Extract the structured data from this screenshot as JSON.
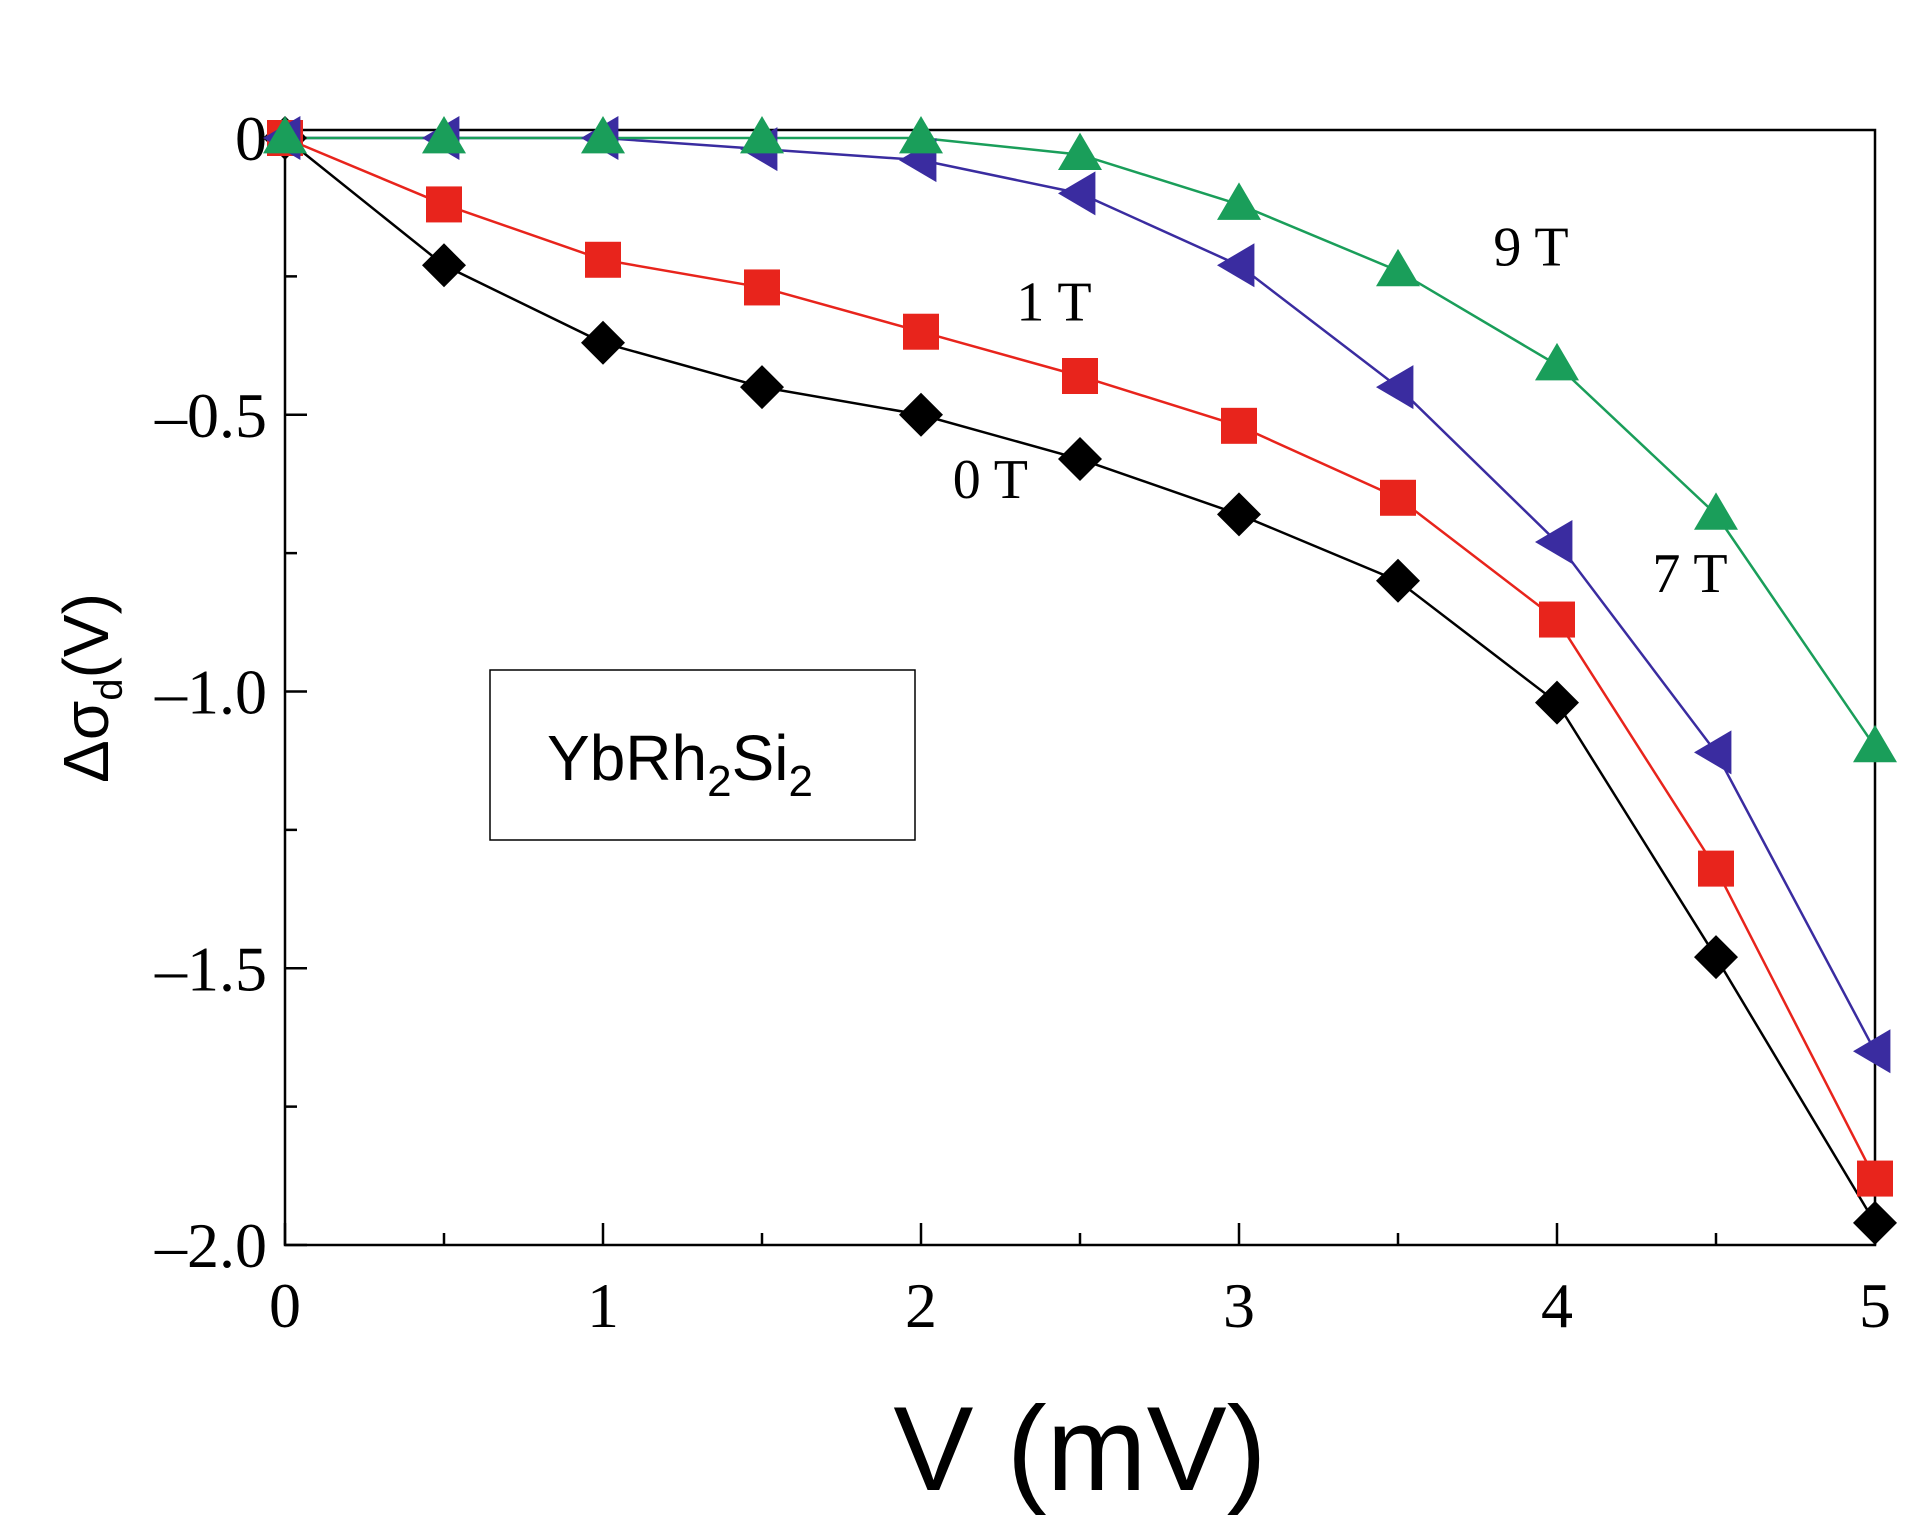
{
  "chart_data": {
    "type": "line",
    "title": "",
    "xlabel": "V (mV)",
    "ylabel": {
      "main": "Δσ",
      "subscript": "d",
      "suffix": "(V)"
    },
    "xlim": [
      0,
      5
    ],
    "ylim": [
      -2.0,
      0.02
    ],
    "x_ticks": [
      {
        "value": 0,
        "label": "0"
      },
      {
        "value": 1,
        "label": "1"
      },
      {
        "value": 2,
        "label": "2"
      },
      {
        "value": 3,
        "label": "3"
      },
      {
        "value": 4,
        "label": "4"
      },
      {
        "value": 5,
        "label": "5"
      }
    ],
    "x_minor_ticks": [
      0.5,
      1.5,
      2.5,
      3.5,
      4.5
    ],
    "y_ticks": [
      {
        "value": 0,
        "label": "0"
      },
      {
        "value": -0.5,
        "label": "–0.5"
      },
      {
        "value": -1.0,
        "label": "–1.0"
      },
      {
        "value": -1.5,
        "label": "–1.5"
      },
      {
        "value": -2.0,
        "label": "–2.0"
      }
    ],
    "y_minor_ticks": [
      -0.25,
      -0.75,
      -1.25,
      -1.75
    ],
    "x": [
      0,
      0.5,
      1,
      1.5,
      2,
      2.5,
      3,
      3.5,
      4,
      4.5,
      5
    ],
    "series": [
      {
        "name": "0 T",
        "label": "0 T",
        "color": "#000000",
        "marker": "diamond",
        "values": [
          0,
          -0.23,
          -0.37,
          -0.45,
          -0.5,
          -0.58,
          -0.68,
          -0.8,
          -1.02,
          -1.48,
          -1.96
        ]
      },
      {
        "name": "1 T",
        "label": "1 T",
        "color": "#e8241c",
        "marker": "square",
        "values": [
          0,
          -0.12,
          -0.22,
          -0.27,
          -0.35,
          -0.43,
          -0.52,
          -0.65,
          -0.87,
          -1.32,
          -1.88
        ]
      },
      {
        "name": "7 T",
        "label": "7 T",
        "color": "#3a2ca0",
        "marker": "triangle-left",
        "values": [
          0,
          0,
          0,
          -0.02,
          -0.04,
          -0.1,
          -0.23,
          -0.45,
          -0.73,
          -1.11,
          -1.65
        ]
      },
      {
        "name": "9 T",
        "label": "9 T",
        "color": "#1a9e5a",
        "marker": "triangle-up",
        "values": [
          0,
          0,
          0,
          0,
          0,
          -0.03,
          -0.12,
          -0.24,
          -0.41,
          -0.68,
          -1.1
        ]
      }
    ],
    "annotation": {
      "main": "YbRh",
      "sub1": "2",
      "mid": "Si",
      "sub2": "2"
    }
  }
}
